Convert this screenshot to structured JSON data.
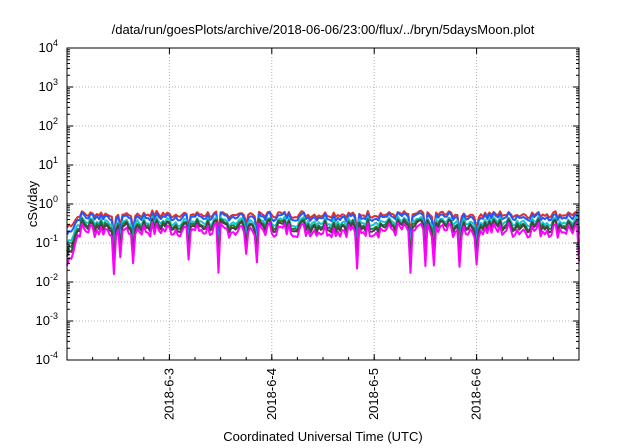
{
  "chart_data": {
    "type": "line",
    "title": "/data/run/goesPlots/archive/2018-06-06/23:00/flux/../bryn/5daysMoon.plot",
    "xlabel": "Coordinated Universal Time (UTC)",
    "ylabel": "cSv/day",
    "y_scale": "log",
    "ylim": [
      0.0001,
      10000
    ],
    "y_ticks": [
      {
        "base": "10",
        "exp": "-4"
      },
      {
        "base": "10",
        "exp": "-3"
      },
      {
        "base": "10",
        "exp": "-2"
      },
      {
        "base": "10",
        "exp": "-1"
      },
      {
        "base": "10",
        "exp": "0"
      },
      {
        "base": "10",
        "exp": "1"
      },
      {
        "base": "10",
        "exp": "2"
      },
      {
        "base": "10",
        "exp": "3"
      },
      {
        "base": "10",
        "exp": "4"
      }
    ],
    "xlim": [
      "2018-06-02T00:00",
      "2018-06-07T00:00"
    ],
    "x_ticks": [
      "2018-6-3",
      "2018-6-4",
      "2018-6-5",
      "2018-6-6"
    ],
    "grid": true,
    "legend": "none",
    "series": [
      {
        "color": "#e0302a",
        "level": 0.55
      },
      {
        "color": "#1e5aff",
        "level": 0.48
      },
      {
        "color": "#17c7c7",
        "level": 0.36
      },
      {
        "color": "#1f7a3a",
        "level": 0.31
      },
      {
        "color": "#444444",
        "level": 0.28
      },
      {
        "color": "#ff00ff",
        "level": 0.22
      }
    ],
    "sample_points": {
      "x": [
        "2018-06-02",
        "2018-06-02T12:00",
        "2018-06-03",
        "2018-06-03T12:00",
        "2018-06-04",
        "2018-06-04T12:00",
        "2018-06-05",
        "2018-06-05T12:00",
        "2018-06-06",
        "2018-06-06T12:00",
        "2018-06-07"
      ],
      "top_envelope": [
        0.35,
        0.55,
        0.5,
        0.5,
        0.45,
        0.55,
        0.55,
        0.5,
        0.5,
        0.55,
        0.55
      ],
      "bottom_envelope": [
        0.08,
        0.14,
        0.12,
        0.13,
        0.12,
        0.14,
        0.13,
        0.13,
        0.12,
        0.13,
        0.15
      ]
    }
  }
}
